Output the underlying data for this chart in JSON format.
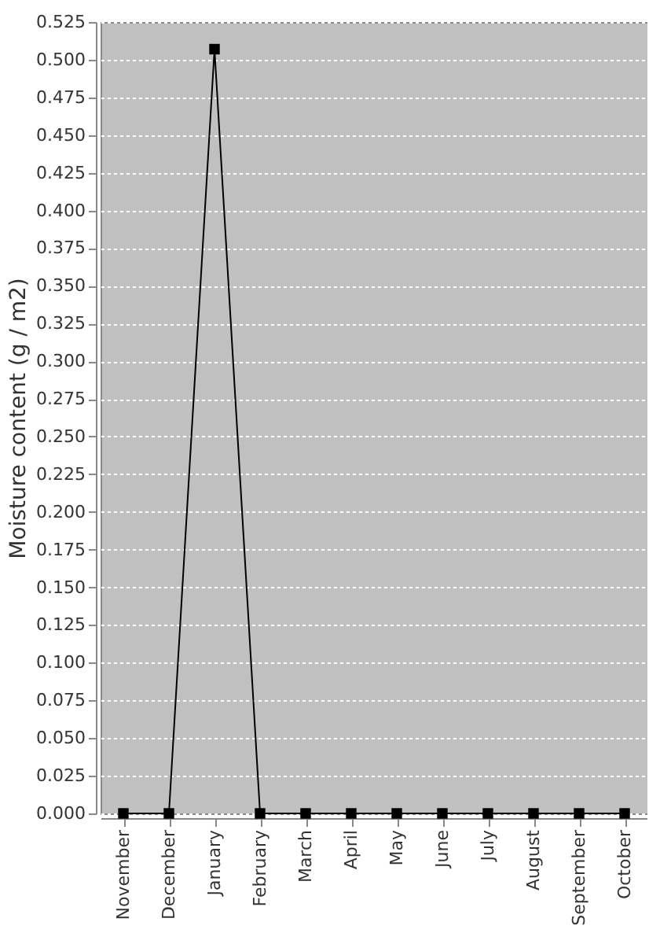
{
  "chart_data": {
    "type": "line",
    "ylabel": "Moisture content (g / m2)",
    "categories": [
      "November",
      "December",
      "January",
      "February",
      "March",
      "April",
      "May",
      "June",
      "July",
      "August",
      "September",
      "October"
    ],
    "series": [
      {
        "color": "#000000",
        "values": [
          0,
          0,
          0.507,
          0,
          0,
          0,
          0,
          0,
          0,
          0,
          0,
          0
        ]
      }
    ],
    "ylim": [
      0,
      0.525
    ],
    "yticks": [
      {
        "value": 0,
        "label": "0.000"
      },
      {
        "value": 0.025,
        "label": "0.025"
      },
      {
        "value": 0.05,
        "label": "0.050"
      },
      {
        "value": 0.075,
        "label": "0.075"
      },
      {
        "value": 0.1,
        "label": "0.100"
      },
      {
        "value": 0.125,
        "label": "0.125"
      },
      {
        "value": 0.15,
        "label": "0.150"
      },
      {
        "value": 0.175,
        "label": "0.175"
      },
      {
        "value": 0.2,
        "label": "0.200"
      },
      {
        "value": 0.225,
        "label": "0.225"
      },
      {
        "value": 0.25,
        "label": "0.250"
      },
      {
        "value": 0.275,
        "label": "0.275"
      },
      {
        "value": 0.3,
        "label": "0.300"
      },
      {
        "value": 0.325,
        "label": "0.325"
      },
      {
        "value": 0.35,
        "label": "0.350"
      },
      {
        "value": 0.375,
        "label": "0.375"
      },
      {
        "value": 0.4,
        "label": "0.400"
      },
      {
        "value": 0.425,
        "label": "0.425"
      },
      {
        "value": 0.45,
        "label": "0.450"
      },
      {
        "value": 0.475,
        "label": "0.475"
      },
      {
        "value": 0.5,
        "label": "0.500"
      },
      {
        "value": 0.525,
        "label": "0.525"
      }
    ],
    "grid": "y",
    "marker": "square",
    "line_style": "solid"
  }
}
